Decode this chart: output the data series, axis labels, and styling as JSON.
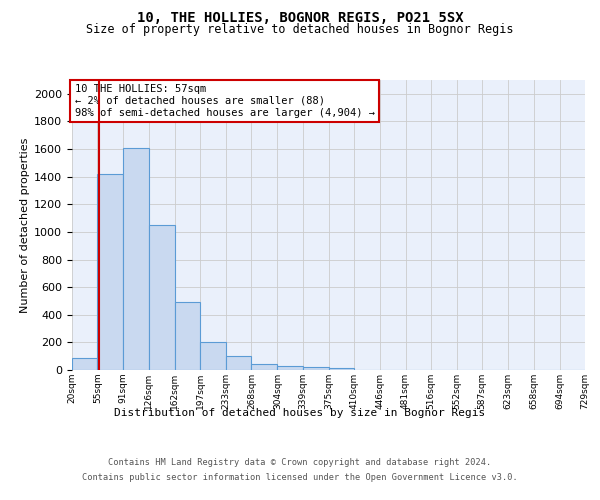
{
  "title1": "10, THE HOLLIES, BOGNOR REGIS, PO21 5SX",
  "title2": "Size of property relative to detached houses in Bognor Regis",
  "xlabel": "Distribution of detached houses by size in Bognor Regis",
  "ylabel": "Number of detached properties",
  "bar_color": "#c9d9f0",
  "bar_edge_color": "#5b9bd5",
  "background_color": "#eaf0fb",
  "bin_labels": [
    "20sqm",
    "55sqm",
    "91sqm",
    "126sqm",
    "162sqm",
    "197sqm",
    "233sqm",
    "268sqm",
    "304sqm",
    "339sqm",
    "375sqm",
    "410sqm",
    "446sqm",
    "481sqm",
    "516sqm",
    "552sqm",
    "587sqm",
    "623sqm",
    "658sqm",
    "694sqm",
    "729sqm"
  ],
  "bar_values": [
    88,
    1422,
    1610,
    1050,
    490,
    205,
    105,
    42,
    28,
    20,
    18,
    0,
    0,
    0,
    0,
    0,
    0,
    0,
    0,
    0
  ],
  "ylim": [
    0,
    2100
  ],
  "yticks": [
    0,
    200,
    400,
    600,
    800,
    1000,
    1200,
    1400,
    1600,
    1800,
    2000
  ],
  "property_line_x": 57,
  "bin_edges": [
    20,
    55,
    91,
    126,
    162,
    197,
    233,
    268,
    304,
    339,
    375,
    410,
    446,
    481,
    516,
    552,
    587,
    623,
    658,
    694,
    729
  ],
  "annotation_text": "10 THE HOLLIES: 57sqm\n← 2% of detached houses are smaller (88)\n98% of semi-detached houses are larger (4,904) →",
  "annotation_box_color": "#ffffff",
  "annotation_box_edge": "#cc0000",
  "grid_color": "#cccccc",
  "vline_color": "#cc0000",
  "footer_line1": "Contains HM Land Registry data © Crown copyright and database right 2024.",
  "footer_line2": "Contains public sector information licensed under the Open Government Licence v3.0."
}
